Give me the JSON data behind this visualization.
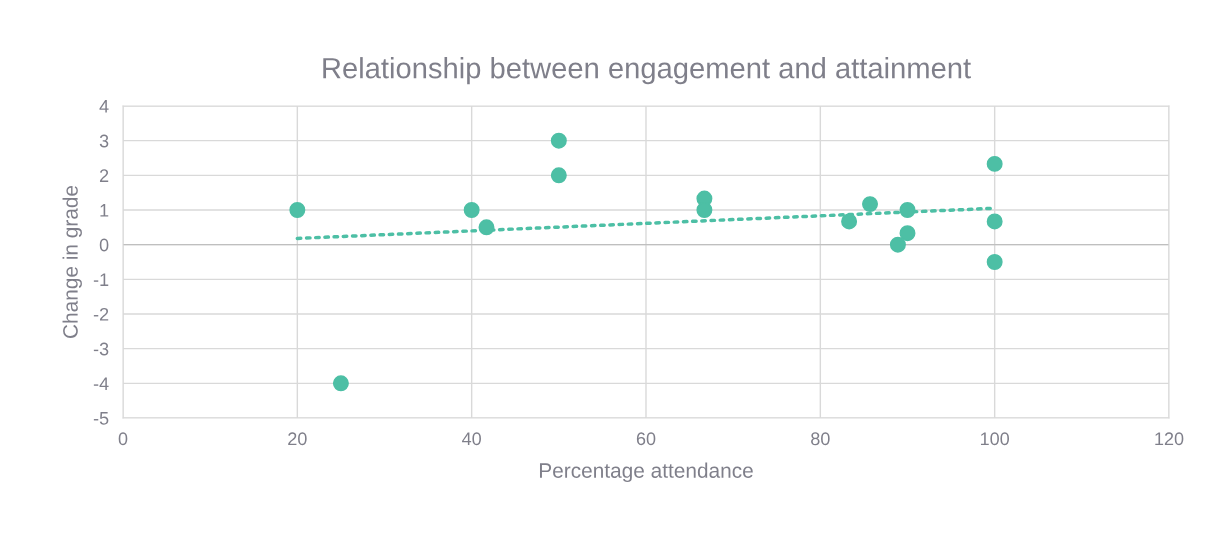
{
  "chart_data": {
    "type": "scatter",
    "title": "Relationship between engagement and attainment",
    "xlabel": "Percentage attendance",
    "ylabel": "Change in grade",
    "series": [
      {
        "color": "#4dbfa5",
        "marker": "circle",
        "x": [
          20,
          25,
          40,
          41.7,
          50,
          50,
          66.7,
          66.7,
          83.3,
          85.7,
          88.9,
          90,
          90,
          100,
          100,
          100
        ],
        "values": [
          1,
          -4,
          1,
          0.5,
          3,
          2,
          1.33,
          1,
          0.67,
          1.17,
          0,
          1,
          0.33,
          2.33,
          0.67,
          -0.5
        ]
      },
      {
        "type": "line",
        "color": "#4dbfa5",
        "marker": "none",
        "line_style": "dotted",
        "x": [
          20,
          100
        ],
        "values": [
          0.18,
          1.05
        ]
      }
    ],
    "xlim": [
      0,
      120
    ],
    "xticks": [
      0,
      20,
      40,
      60,
      80,
      100,
      120
    ],
    "ylim": [
      -5,
      4
    ],
    "yticks": [
      -5,
      -4,
      -3,
      -2,
      -1,
      0,
      1,
      2,
      3,
      4
    ],
    "grid": true,
    "legend": false
  }
}
